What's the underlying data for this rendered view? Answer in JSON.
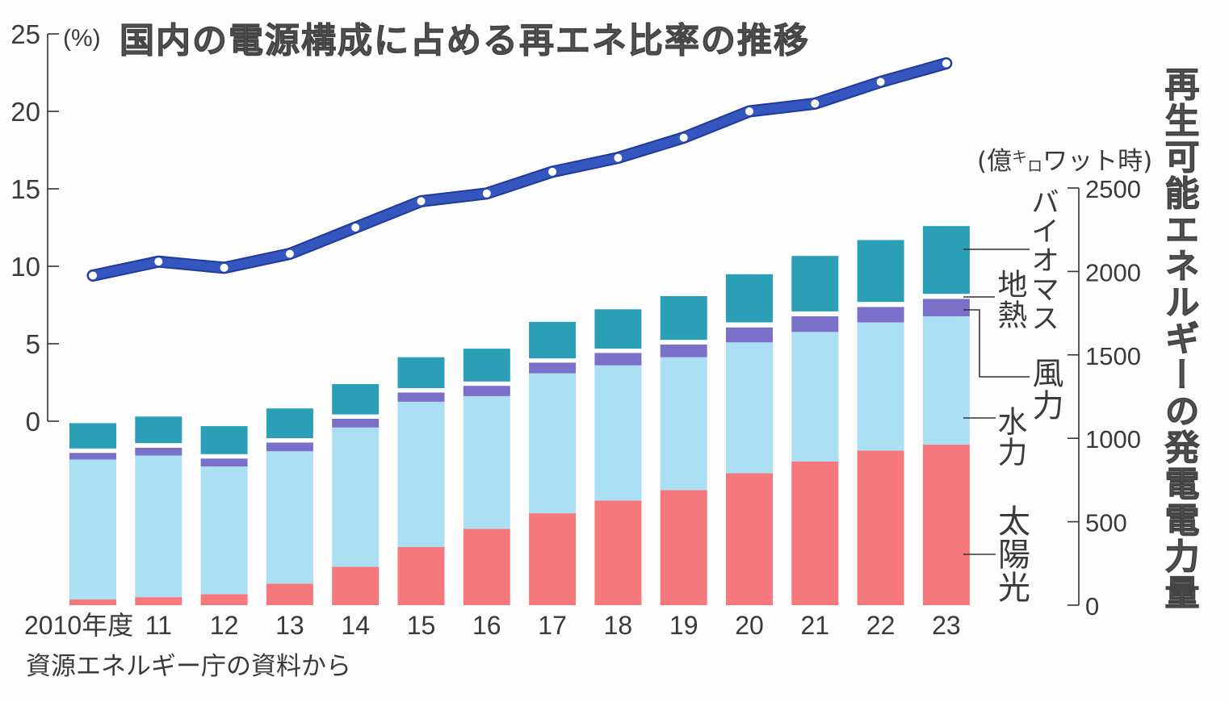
{
  "chart_data": {
    "type": "bar+line",
    "title": "国内の電源構成に占める再エネ比率の推移",
    "categories": [
      "2010年度",
      "11",
      "12",
      "13",
      "14",
      "15",
      "16",
      "17",
      "18",
      "19",
      "20",
      "21",
      "22",
      "23"
    ],
    "bar_series": [
      {
        "key": "solar",
        "name": "太陽光",
        "color": "#f5787c",
        "values": [
          35,
          48,
          66,
          129,
          230,
          348,
          458,
          551,
          627,
          690,
          791,
          861,
          926,
          962
        ]
      },
      {
        "key": "hydro",
        "name": "水力",
        "color": "#abdff3",
        "values": [
          838,
          849,
          765,
          794,
          835,
          871,
          795,
          838,
          810,
          796,
          784,
          776,
          768,
          769
        ]
      },
      {
        "key": "wind",
        "name": "風力",
        "color": "#7b70c9",
        "values": [
          40,
          47,
          48,
          52,
          52,
          56,
          62,
          65,
          75,
          76,
          90,
          94,
          93,
          105
        ]
      },
      {
        "key": "geothermal",
        "name": "地熱",
        "color": "#ffffff",
        "values": [
          26,
          27,
          26,
          26,
          26,
          26,
          25,
          25,
          25,
          28,
          30,
          30,
          30,
          30
        ]
      },
      {
        "key": "biomass",
        "name": "バイオマス",
        "color": "#2a9fb6",
        "values": [
          152,
          159,
          168,
          178,
          182,
          185,
          197,
          219,
          236,
          262,
          288,
          332,
          371,
          406
        ]
      }
    ],
    "line_series": {
      "name": "再エネ比率",
      "color": "#3556bf",
      "values": [
        9.4,
        10.3,
        9.9,
        10.8,
        12.5,
        14.2,
        14.7,
        16.1,
        17.0,
        18.3,
        20.0,
        20.5,
        21.9,
        23.1
      ]
    },
    "left_axis": {
      "unit": "(%)",
      "range": [
        0,
        25
      ],
      "ticks": [
        0,
        5,
        10,
        15,
        20,
        25
      ]
    },
    "right_axis": {
      "title": "再生可能エネルギーの発電電力量",
      "unit": {
        "prefix": "(億",
        "small_1": "キ",
        "small_2": "ロ",
        "suffix": "ワット時)"
      },
      "range": [
        0,
        2500
      ],
      "ticks": [
        0,
        500,
        1000,
        1500,
        2000,
        2500
      ]
    },
    "legend": "right",
    "grid": false,
    "source": "資源エネルギー庁の資料から"
  }
}
